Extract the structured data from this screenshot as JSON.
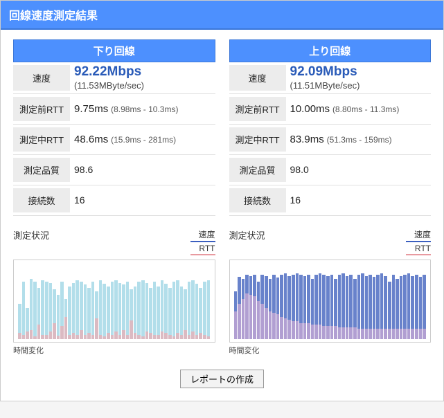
{
  "header": {
    "title": "回線速度測定結果"
  },
  "colors": {
    "header_bg": "#4d90fe",
    "speed_text": "#2a5bb8",
    "legend_speed": "#3b5fbf",
    "legend_rtt": "#e89aa0",
    "down_speed_bar": "#a5d8e6",
    "down_rtt_bar": "#e8aeb4",
    "up_speed_bar": "#4d6cc2",
    "up_rtt_bar": "#c9a8d4",
    "chart_border": "#cccccc",
    "background": "#ffffff"
  },
  "panels": {
    "down": {
      "title": "下り回線",
      "rows": {
        "speed_label": "速度",
        "speed_value": "92.22Mbps",
        "speed_sub": "(11.53MByte/sec)",
        "rtt_before_label": "測定前RTT",
        "rtt_before_value": "9.75ms",
        "rtt_before_range": "(8.98ms - 10.3ms)",
        "rtt_during_label": "測定中RTT",
        "rtt_during_value": "48.6ms",
        "rtt_during_range": "(15.9ms - 281ms)",
        "quality_label": "測定品質",
        "quality_value": "98.6",
        "conn_label": "接続数",
        "conn_value": "16"
      },
      "chart": {
        "title": "測定状況",
        "xaxis": "時間変化",
        "legend_speed": "速度",
        "legend_rtt": "RTT",
        "type": "bar",
        "speed_color": "#a5d8e6",
        "rtt_color": "#e8aeb4",
        "ylim": [
          0,
          100
        ],
        "speed_values": [
          48,
          78,
          42,
          82,
          78,
          70,
          80,
          78,
          76,
          68,
          60,
          78,
          55,
          72,
          76,
          80,
          78,
          74,
          70,
          78,
          65,
          80,
          75,
          72,
          78,
          80,
          76,
          74,
          78,
          68,
          72,
          78,
          80,
          76,
          70,
          78,
          72,
          80,
          75,
          70,
          78,
          80,
          72,
          68,
          78,
          80,
          75,
          70,
          78,
          80
        ],
        "rtt_values": [
          8,
          6,
          10,
          12,
          4,
          20,
          6,
          6,
          10,
          22,
          5,
          18,
          30,
          6,
          8,
          6,
          12,
          6,
          8,
          6,
          28,
          6,
          4,
          8,
          6,
          10,
          6,
          12,
          6,
          25,
          8,
          6,
          4,
          10,
          8,
          6,
          6,
          10,
          8,
          6,
          4,
          8,
          6,
          12,
          6,
          10,
          6,
          8,
          6,
          4
        ]
      }
    },
    "up": {
      "title": "上り回線",
      "rows": {
        "speed_label": "速度",
        "speed_value": "92.09Mbps",
        "speed_sub": "(11.51MByte/sec)",
        "rtt_before_label": "測定前RTT",
        "rtt_before_value": "10.00ms",
        "rtt_before_range": "(8.80ms - 11.3ms)",
        "rtt_during_label": "測定中RTT",
        "rtt_during_value": "83.9ms",
        "rtt_during_range": "(51.3ms - 159ms)",
        "quality_label": "測定品質",
        "quality_value": "98.0",
        "conn_label": "接続数",
        "conn_value": "16"
      },
      "chart": {
        "title": "測定状況",
        "xaxis": "時間変化",
        "legend_speed": "速度",
        "legend_rtt": "RTT",
        "type": "bar",
        "speed_color": "#4d6cc2",
        "rtt_color": "#c9a8d4",
        "ylim": [
          0,
          100
        ],
        "speed_values": [
          65,
          85,
          82,
          88,
          86,
          88,
          78,
          88,
          86,
          82,
          88,
          84,
          88,
          90,
          86,
          88,
          90,
          88,
          86,
          88,
          82,
          88,
          90,
          88,
          86,
          88,
          82,
          88,
          90,
          86,
          88,
          82,
          88,
          90,
          86,
          88,
          85,
          88,
          90,
          86,
          78,
          88,
          82,
          86,
          88,
          90,
          86,
          88,
          85,
          88
        ],
        "rtt_values": [
          38,
          48,
          55,
          62,
          60,
          58,
          52,
          48,
          42,
          38,
          36,
          34,
          30,
          28,
          26,
          24,
          24,
          22,
          22,
          22,
          20,
          20,
          20,
          18,
          18,
          18,
          18,
          16,
          16,
          16,
          16,
          16,
          14,
          14,
          14,
          14,
          14,
          14,
          14,
          14,
          14,
          14,
          14,
          14,
          14,
          14,
          14,
          14,
          14,
          14
        ]
      }
    }
  },
  "footer": {
    "button_label": "レポートの作成"
  }
}
